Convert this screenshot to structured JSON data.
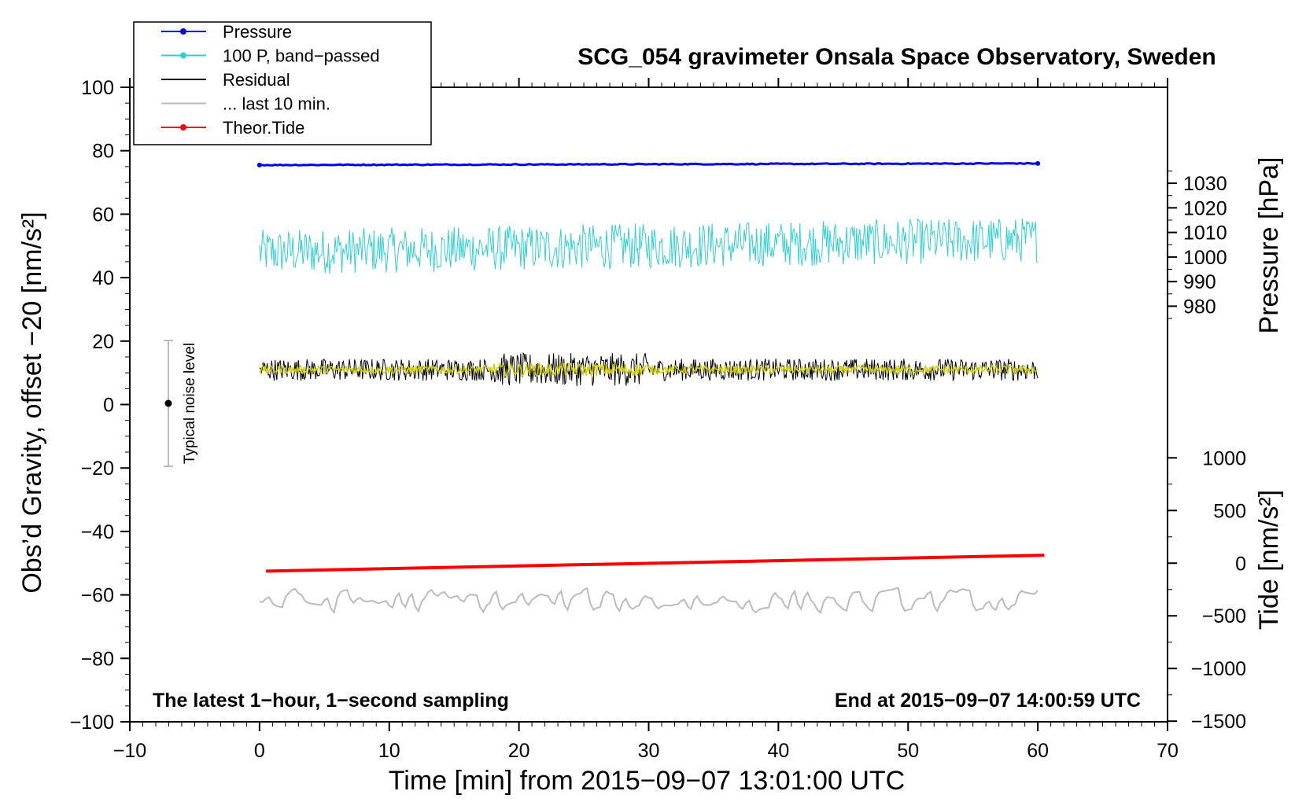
{
  "chart_data": {
    "type": "line",
    "title": "SCG_054 gravimeter Onsala Space Observatory, Sweden",
    "xlabel": "Time [min] from 2015−09−07 13:01:00 UTC",
    "ylabel_left": "Obs’d Gravity, offset  −20 [nm/s²]",
    "ylabel_right_top": "Pressure [hPa]",
    "ylabel_right_bottom": "Tide [nm/s²]",
    "xlim": [
      -10,
      70
    ],
    "ylim": [
      -100,
      100
    ],
    "x_ticks": [
      "−10",
      "0",
      "10",
      "20",
      "30",
      "40",
      "50",
      "60",
      "70"
    ],
    "y_ticks": [
      "−100",
      "−80",
      "−60",
      "−40",
      "−20",
      "0",
      "20",
      "40",
      "60",
      "80",
      "100"
    ],
    "pressure_axis": {
      "ticks": [
        "980",
        "990",
        "1000",
        "1010",
        "1020",
        "1030"
      ],
      "values": [
        980,
        990,
        1000,
        1010,
        1020,
        1030
      ]
    },
    "tide_axis": {
      "ticks": [
        "−1500",
        "−1000",
        "−500",
        "0",
        "500",
        "1000"
      ],
      "values": [
        -1500,
        -1000,
        -500,
        0,
        500,
        1000
      ]
    },
    "note_left": "The latest 1−hour, 1−second sampling",
    "note_right": "End at 2015−09−07 14:00:59 UTC",
    "noise_bar": {
      "label": "Typical noise level",
      "x": -7,
      "center": 0,
      "low": -20,
      "high": 20
    },
    "legend": {
      "position": "top-left",
      "entries": [
        {
          "label": "Pressure",
          "color": "#0000ff",
          "marker": true
        },
        {
          "label": "100 P, band−passed",
          "color": "#30d0d0",
          "marker": true
        },
        {
          "label": "Residual",
          "color": "#000000",
          "marker": false
        },
        {
          "label": "... last 10 min.",
          "color": "#bbbbbb",
          "marker": false
        },
        {
          "label": "Theor.Tide",
          "color": "#ff0000",
          "marker": true
        }
      ]
    },
    "series": [
      {
        "name": "Pressure",
        "color": "#0000ff",
        "x_range": [
          0,
          60
        ],
        "y_start": 75.5,
        "y_end": 76.0,
        "noise": 0.3
      },
      {
        "name": "100 P, band−passed",
        "color": "#30d0d0",
        "x_range": [
          0,
          60
        ],
        "y_mean": 48,
        "y_mean_end": 52,
        "amplitude": 6.0,
        "y_min": 31,
        "y_max": 63
      },
      {
        "name": "Residual",
        "color": "#000000",
        "x_range": [
          0,
          60
        ],
        "y_mean": 11,
        "amplitude": 3.5,
        "y_min": -1,
        "y_max": 24
      },
      {
        "name": "Residual (smoothed)",
        "color": "#d0d000",
        "x_range": [
          0,
          60
        ],
        "y_mean": 11,
        "amplitude": 1.3
      },
      {
        "name": "... last 10 min.",
        "color": "#bbbbbb",
        "x_range": [
          0,
          60
        ],
        "y_mean": -62,
        "amplitude": 2.5,
        "y_min": -70,
        "y_max": -55
      },
      {
        "name": "Theor.Tide",
        "color": "#ff0000",
        "x_range": [
          0.5,
          60.5
        ],
        "y_start": -52.5,
        "y_end": -47.5
      }
    ]
  }
}
